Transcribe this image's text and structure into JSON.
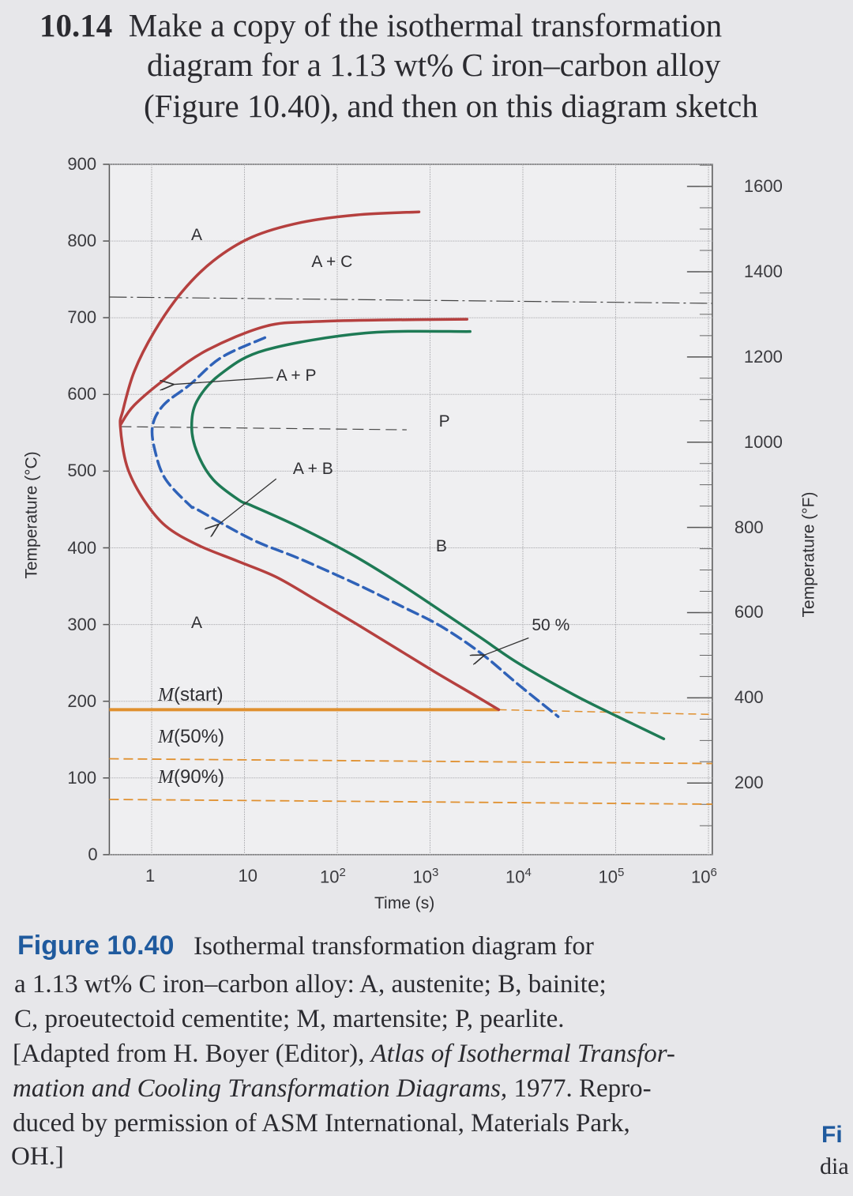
{
  "question": {
    "number": "10.14",
    "lines": [
      "Make a copy of the isothermal transformation",
      "diagram for a 1.13 wt% C iron–carbon alloy",
      "(Figure 10.40), and then on this diagram sketch"
    ]
  },
  "caption": {
    "figure_label": "Figure 10.40",
    "line1": "Isothermal transformation diagram for",
    "line2": "a 1.13 wt% C iron–carbon alloy: A, austenite; B, bainite;",
    "line3": "C, proeutectoid cementite; M, martensite; P, pearlite.",
    "line4_a": "[Adapted from H. Boyer (Editor), ",
    "line4_b": "Atlas of Isothermal Transfor-",
    "line5_a": "mation and Cooling Transformation Diagrams,",
    "line5_b": " 1977. Repro-",
    "line6": "duced by permission of ASM International, Materials Park,",
    "line7": "OH.]"
  },
  "edge_fragments": {
    "line1": "Fi",
    "line2": "dia"
  },
  "chart_data": {
    "type": "line",
    "xlabel": "Time (s)",
    "ylabel": "Temperature (°C)",
    "ylabel_right": "Temperature (°F)",
    "x_scale": "log",
    "xlim": [
      0.35,
      1100000
    ],
    "ylim": [
      0,
      900
    ],
    "grid": true,
    "x_ticks": [
      {
        "value": 1,
        "base": "1",
        "exp": ""
      },
      {
        "value": 10,
        "base": "10",
        "exp": ""
      },
      {
        "value": 100,
        "base": "10",
        "exp": "2"
      },
      {
        "value": 1000,
        "base": "10",
        "exp": "3"
      },
      {
        "value": 10000,
        "base": "10",
        "exp": "4"
      },
      {
        "value": 100000,
        "base": "10",
        "exp": "5"
      },
      {
        "value": 1000000,
        "base": "10",
        "exp": "6"
      }
    ],
    "y_ticks": [
      "900",
      "800",
      "700",
      "600",
      "500",
      "400",
      "300",
      "200",
      "100",
      "0"
    ],
    "y_right_ticks": [
      "1600",
      "1400",
      "1200",
      "1000",
      "800",
      "600",
      "400",
      "200"
    ],
    "colors": {
      "start": "#b5403f",
      "fifty": "#2f62b8",
      "finish": "#1e7a55",
      "martensite": "#e0902f",
      "line": "#333333"
    },
    "series": [
      {
        "key": "cementite-start",
        "style": "start",
        "t": [
          760,
          160,
          40,
          12,
          4.6,
          2.1,
          1.07,
          0.65,
          0.49,
          0.46,
          0.54,
          0.8,
          1.4,
          3.1,
          8.3,
          22,
          59,
          160,
          420,
          1100,
          3000,
          5500
        ],
        "T": [
          838,
          834,
          824,
          805,
          774,
          733,
          682,
          630,
          579,
          558,
          507,
          465,
          429,
          404,
          383,
          362,
          332,
          301,
          270,
          239,
          208,
          189
        ]
      },
      {
        "key": "pearlite-start",
        "style": "start",
        "t": [
          2500,
          280,
          59,
          17,
          4,
          1.5,
          0.65,
          0.46
        ],
        "T": [
          698,
          697,
          695,
          689,
          658,
          623,
          586,
          560
        ]
      },
      {
        "key": "fifty-percent",
        "style": "fifty",
        "t": [
          16.6,
          5.6,
          2.6,
          1.34,
          1.02,
          1.1,
          1.42,
          2.6,
          3.1,
          12,
          39,
          166,
          490,
          1300,
          3500,
          9100,
          24000
        ],
        "T": [
          674,
          648,
          613,
          586,
          558,
          524,
          489,
          455,
          450,
          411,
          386,
          352,
          324,
          298,
          263,
          221,
          180
        ]
      },
      {
        "key": "finish",
        "style": "finish",
        "t": [
          2700,
          200,
          17,
          5.6,
          3.1,
          2.7,
          3.1,
          4.6,
          8.8,
          12,
          39,
          150,
          490,
          1300,
          3500,
          9100,
          36000,
          105000,
          330000
        ],
        "T": [
          682,
          680,
          658,
          627,
          592,
          558,
          524,
          489,
          462,
          455,
          427,
          390,
          352,
          318,
          283,
          249,
          208,
          180,
          151
        ]
      }
    ],
    "eutectoid_line": {
      "T": 727,
      "style": "dash-dot"
    },
    "pearlite_bainite_boundary": {
      "T": 558,
      "t_from": 0.46,
      "t_to": 560,
      "style": "dashed"
    },
    "martensite_lines": [
      {
        "label_base": "M",
        "label_rest": "(start)",
        "T": 189,
        "style": "solid",
        "t_to": 5500
      },
      {
        "label_base": "M",
        "label_rest": "(50%)",
        "T": 125,
        "style": "dashed"
      },
      {
        "label_base": "M",
        "label_rest": "(90%)",
        "T": 72,
        "style": "dashed"
      }
    ],
    "region_labels": [
      {
        "text": "A",
        "t": 3.0,
        "T": 805
      },
      {
        "text": "A + C",
        "t": 95,
        "T": 770
      },
      {
        "text": "P",
        "t": 1400,
        "T": 562
      },
      {
        "text": "A + B",
        "t": 60,
        "T": 500
      },
      {
        "text": "B",
        "t": 1300,
        "T": 400
      },
      {
        "text": "A",
        "t": 3.0,
        "T": 300
      }
    ],
    "arrow_labels": [
      {
        "text": "A + P",
        "t": 22,
        "T": 622,
        "tip_t": 1.7,
        "tip_T": 613
      },
      {
        "text": "50 %",
        "t": 12500,
        "T": 297,
        "tip_t": 3800,
        "tip_T": 260
      }
    ],
    "arrow_b": {
      "text_ref": "A + B",
      "from_t": 22,
      "from_T": 490,
      "tip_t": 5.2,
      "tip_T": 430
    }
  }
}
